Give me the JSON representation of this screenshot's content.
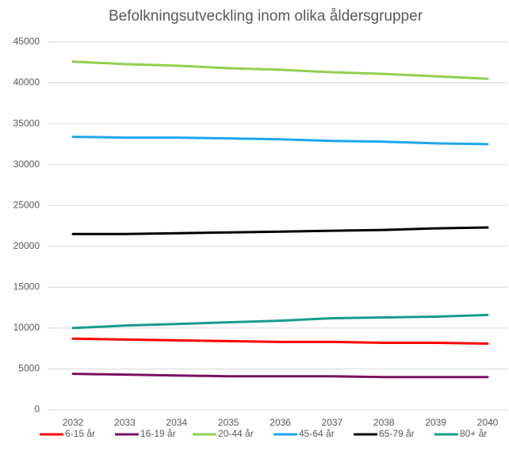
{
  "chart_data": {
    "type": "line",
    "title": "Befolkningsutveckling inom olika åldersgrupper",
    "categories": [
      "2032",
      "2033",
      "2034",
      "2035",
      "2036",
      "2037",
      "2038",
      "2039",
      "2040"
    ],
    "series": [
      {
        "name": "6-15 år",
        "color": "#ff0000",
        "values": [
          8700,
          8600,
          8500,
          8400,
          8300,
          8300,
          8200,
          8200,
          8100
        ]
      },
      {
        "name": "16-19 år",
        "color": "#7b1060",
        "values": [
          4400,
          4300,
          4200,
          4100,
          4100,
          4100,
          4000,
          4000,
          4000
        ]
      },
      {
        "name": "20-44 år",
        "color": "#92d050",
        "values": [
          42600,
          42300,
          42100,
          41800,
          41600,
          41300,
          41100,
          40800,
          40500
        ]
      },
      {
        "name": "45-64 år",
        "color": "#1ea7f0",
        "values": [
          33400,
          33300,
          33300,
          33200,
          33100,
          32900,
          32800,
          32600,
          32500
        ]
      },
      {
        "name": "65-79 år",
        "color": "#000000",
        "values": [
          21500,
          21500,
          21600,
          21700,
          21800,
          21900,
          22000,
          22200,
          22300
        ]
      },
      {
        "name": "80+ år",
        "color": "#179c8c",
        "values": [
          10000,
          10300,
          10500,
          10700,
          10900,
          11200,
          11300,
          11400,
          11600
        ]
      }
    ],
    "ylim": [
      0,
      45000
    ],
    "yticks": [
      0,
      5000,
      10000,
      15000,
      20000,
      25000,
      30000,
      35000,
      40000,
      45000
    ],
    "grid": true,
    "legend": "bottom"
  }
}
